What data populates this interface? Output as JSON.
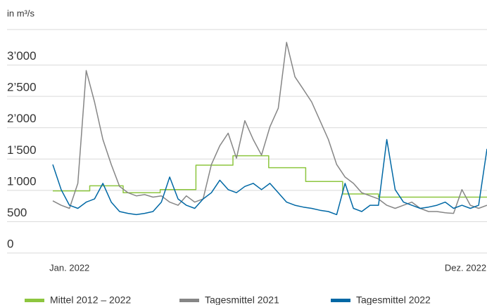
{
  "chart_data": {
    "type": "line",
    "y_label": "in m³/s",
    "x": [
      1,
      8,
      15,
      22,
      29,
      36,
      43,
      50,
      57,
      64,
      71,
      78,
      85,
      92,
      99,
      106,
      113,
      120,
      127,
      134,
      141,
      148,
      155,
      162,
      169,
      176,
      183,
      190,
      197,
      204,
      211,
      218,
      225,
      232,
      239,
      246,
      253,
      260,
      267,
      274,
      281,
      288,
      295,
      302,
      309,
      316,
      323,
      330,
      337,
      344,
      351,
      358,
      365
    ],
    "xlim": [
      1,
      365
    ],
    "xticks": [
      {
        "value": 15,
        "label": "Jan. 2022"
      },
      {
        "value": 347,
        "label": "Dez. 2022"
      }
    ],
    "ylim": [
      0,
      3500
    ],
    "yticks": [
      0,
      500,
      {
        "value": 1000,
        "label": "1’000"
      },
      {
        "value": 1500,
        "label": "1’500"
      },
      {
        "value": 2000,
        "label": "2’000"
      },
      {
        "value": 2500,
        "label": "2’500"
      },
      {
        "value": 3000,
        "label": "3’000"
      }
    ],
    "grid": true,
    "legend": "bottom",
    "series": [
      {
        "name": "Mittel 2012 – 2022",
        "color": "#8dc63f",
        "x": [
          1,
          32,
          32,
          60,
          60,
          91,
          91,
          121,
          121,
          152,
          152,
          182,
          182,
          213,
          213,
          244,
          244,
          274,
          274,
          305,
          305,
          335,
          335,
          365
        ],
        "values": [
          880,
          880,
          960,
          960,
          850,
          850,
          900,
          900,
          1290,
          1290,
          1440,
          1440,
          1250,
          1250,
          1030,
          1030,
          830,
          830,
          780,
          780,
          780,
          780,
          780,
          780
        ]
      },
      {
        "name": "Tagesmittel 2021",
        "color": "#868686",
        "values": [
          720,
          650,
          600,
          1000,
          2800,
          2300,
          1700,
          1300,
          950,
          850,
          800,
          820,
          780,
          800,
          700,
          650,
          800,
          700,
          750,
          1300,
          1600,
          1800,
          1400,
          2000,
          1700,
          1450,
          1900,
          2200,
          3250,
          2700,
          2500,
          2300,
          2000,
          1700,
          1300,
          1100,
          1000,
          850,
          800,
          750,
          650,
          600,
          650,
          700,
          600,
          550,
          550,
          530,
          520,
          900,
          650,
          600,
          650
        ]
      },
      {
        "name": "Tagesmittel 2022",
        "color": "#0068a5",
        "values": [
          1300,
          900,
          650,
          600,
          700,
          750,
          1000,
          700,
          550,
          520,
          500,
          520,
          550,
          700,
          1100,
          750,
          650,
          600,
          750,
          850,
          1050,
          900,
          850,
          950,
          1000,
          900,
          1000,
          850,
          700,
          650,
          620,
          600,
          570,
          550,
          500,
          1000,
          600,
          550,
          650,
          650,
          1700,
          900,
          700,
          650,
          600,
          620,
          650,
          700,
          600,
          650,
          600,
          650,
          1550
        ]
      }
    ]
  }
}
